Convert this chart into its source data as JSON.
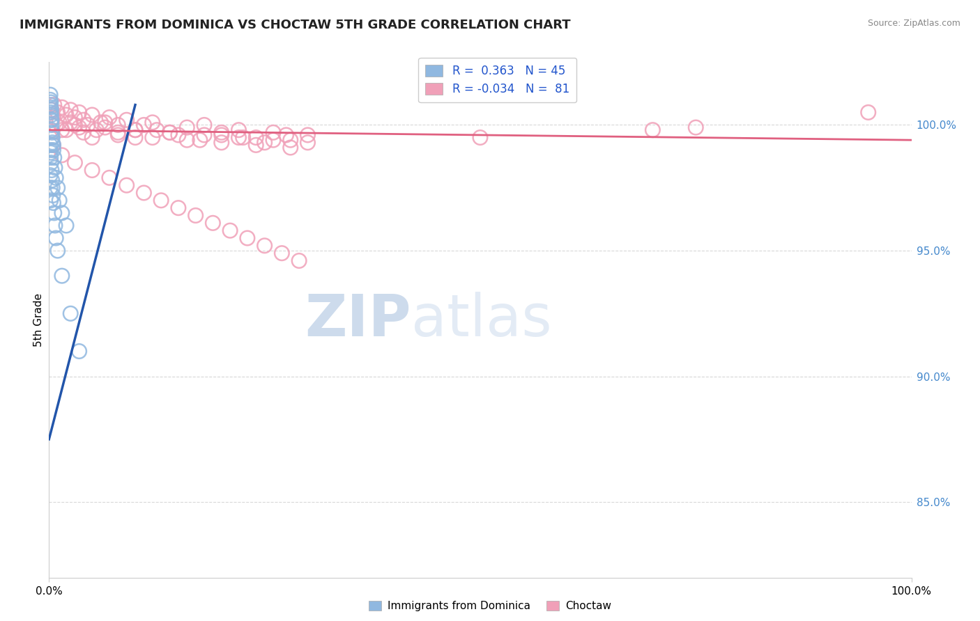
{
  "title": "IMMIGRANTS FROM DOMINICA VS CHOCTAW 5TH GRADE CORRELATION CHART",
  "source_text": "Source: ZipAtlas.com",
  "ylabel": "5th Grade",
  "right_yticks": [
    85.0,
    90.0,
    95.0,
    100.0
  ],
  "xmin": 0.0,
  "xmax": 100.0,
  "ymin": 82.0,
  "ymax": 102.5,
  "blue_r": 0.363,
  "blue_n": 45,
  "pink_r": -0.034,
  "pink_n": 81,
  "watermark_zip": "ZIP",
  "watermark_atlas": "atlas",
  "background_color": "#ffffff",
  "grid_color": "#d8d8d8",
  "blue_color": "#90b8e0",
  "pink_color": "#f0a0b8",
  "blue_line_color": "#2255aa",
  "pink_line_color": "#e06080",
  "blue_line_x0": 0.0,
  "blue_line_y0": 87.5,
  "blue_line_x1": 10.0,
  "blue_line_y1": 100.8,
  "pink_line_x0": 0.0,
  "pink_line_y0": 99.8,
  "pink_line_x1": 100.0,
  "pink_line_y1": 99.4,
  "blue_dots_x": [
    0.15,
    0.15,
    0.15,
    0.2,
    0.2,
    0.2,
    0.25,
    0.25,
    0.25,
    0.3,
    0.3,
    0.3,
    0.35,
    0.35,
    0.4,
    0.4,
    0.5,
    0.5,
    0.6,
    0.7,
    0.8,
    1.0,
    1.2,
    1.5,
    2.0,
    0.15,
    0.15,
    0.2,
    0.2,
    0.25,
    0.3,
    0.35,
    0.4,
    0.45,
    0.5,
    0.6,
    0.7,
    0.8,
    1.0,
    1.5,
    2.5,
    3.5,
    0.15,
    0.15,
    0.2
  ],
  "blue_dots_y": [
    100.8,
    101.0,
    101.2,
    100.5,
    100.7,
    100.9,
    100.2,
    100.4,
    100.6,
    99.8,
    100.0,
    100.2,
    99.5,
    99.7,
    99.3,
    99.5,
    99.0,
    99.2,
    98.7,
    98.3,
    97.9,
    97.5,
    97.0,
    96.5,
    96.0,
    99.0,
    99.2,
    98.7,
    98.9,
    98.5,
    98.2,
    97.8,
    97.5,
    97.2,
    96.9,
    96.5,
    96.0,
    95.5,
    95.0,
    94.0,
    92.5,
    91.0,
    98.0,
    97.5,
    97.0
  ],
  "pink_dots_x": [
    0.3,
    0.6,
    1.0,
    1.5,
    2.0,
    2.5,
    3.0,
    3.5,
    4.0,
    5.0,
    6.0,
    7.0,
    8.0,
    9.0,
    10.0,
    11.0,
    12.0,
    14.0,
    16.0,
    18.0,
    20.0,
    22.0,
    24.0,
    26.0,
    28.0,
    30.0,
    0.5,
    1.2,
    2.0,
    3.0,
    4.0,
    5.0,
    6.5,
    8.0,
    10.0,
    12.5,
    15.0,
    17.5,
    20.0,
    22.5,
    25.0,
    27.5,
    0.8,
    1.5,
    2.5,
    3.5,
    4.5,
    5.5,
    6.5,
    8.0,
    10.0,
    12.0,
    14.0,
    16.0,
    18.0,
    20.0,
    22.0,
    24.0,
    26.0,
    28.0,
    30.0,
    50.0,
    70.0,
    75.0,
    95.0,
    0.5,
    1.5,
    3.0,
    5.0,
    7.0,
    9.0,
    11.0,
    13.0,
    15.0,
    17.0,
    19.0,
    21.0,
    23.0,
    25.0,
    27.0,
    29.0
  ],
  "pink_dots_y": [
    100.6,
    100.8,
    100.5,
    100.7,
    100.4,
    100.6,
    100.3,
    100.5,
    100.2,
    100.4,
    100.1,
    100.3,
    100.0,
    100.2,
    99.8,
    100.0,
    100.1,
    99.7,
    99.9,
    100.0,
    99.6,
    99.8,
    99.5,
    99.7,
    99.4,
    99.6,
    100.3,
    100.1,
    99.8,
    100.0,
    99.7,
    99.5,
    99.9,
    99.7,
    99.5,
    99.8,
    99.6,
    99.4,
    99.7,
    99.5,
    99.3,
    99.6,
    100.0,
    99.8,
    100.1,
    99.9,
    100.0,
    99.8,
    100.1,
    99.6,
    99.8,
    99.5,
    99.7,
    99.4,
    99.6,
    99.3,
    99.5,
    99.2,
    99.4,
    99.1,
    99.3,
    99.5,
    99.8,
    99.9,
    100.5,
    99.2,
    98.8,
    98.5,
    98.2,
    97.9,
    97.6,
    97.3,
    97.0,
    96.7,
    96.4,
    96.1,
    95.8,
    95.5,
    95.2,
    94.9,
    94.6
  ]
}
